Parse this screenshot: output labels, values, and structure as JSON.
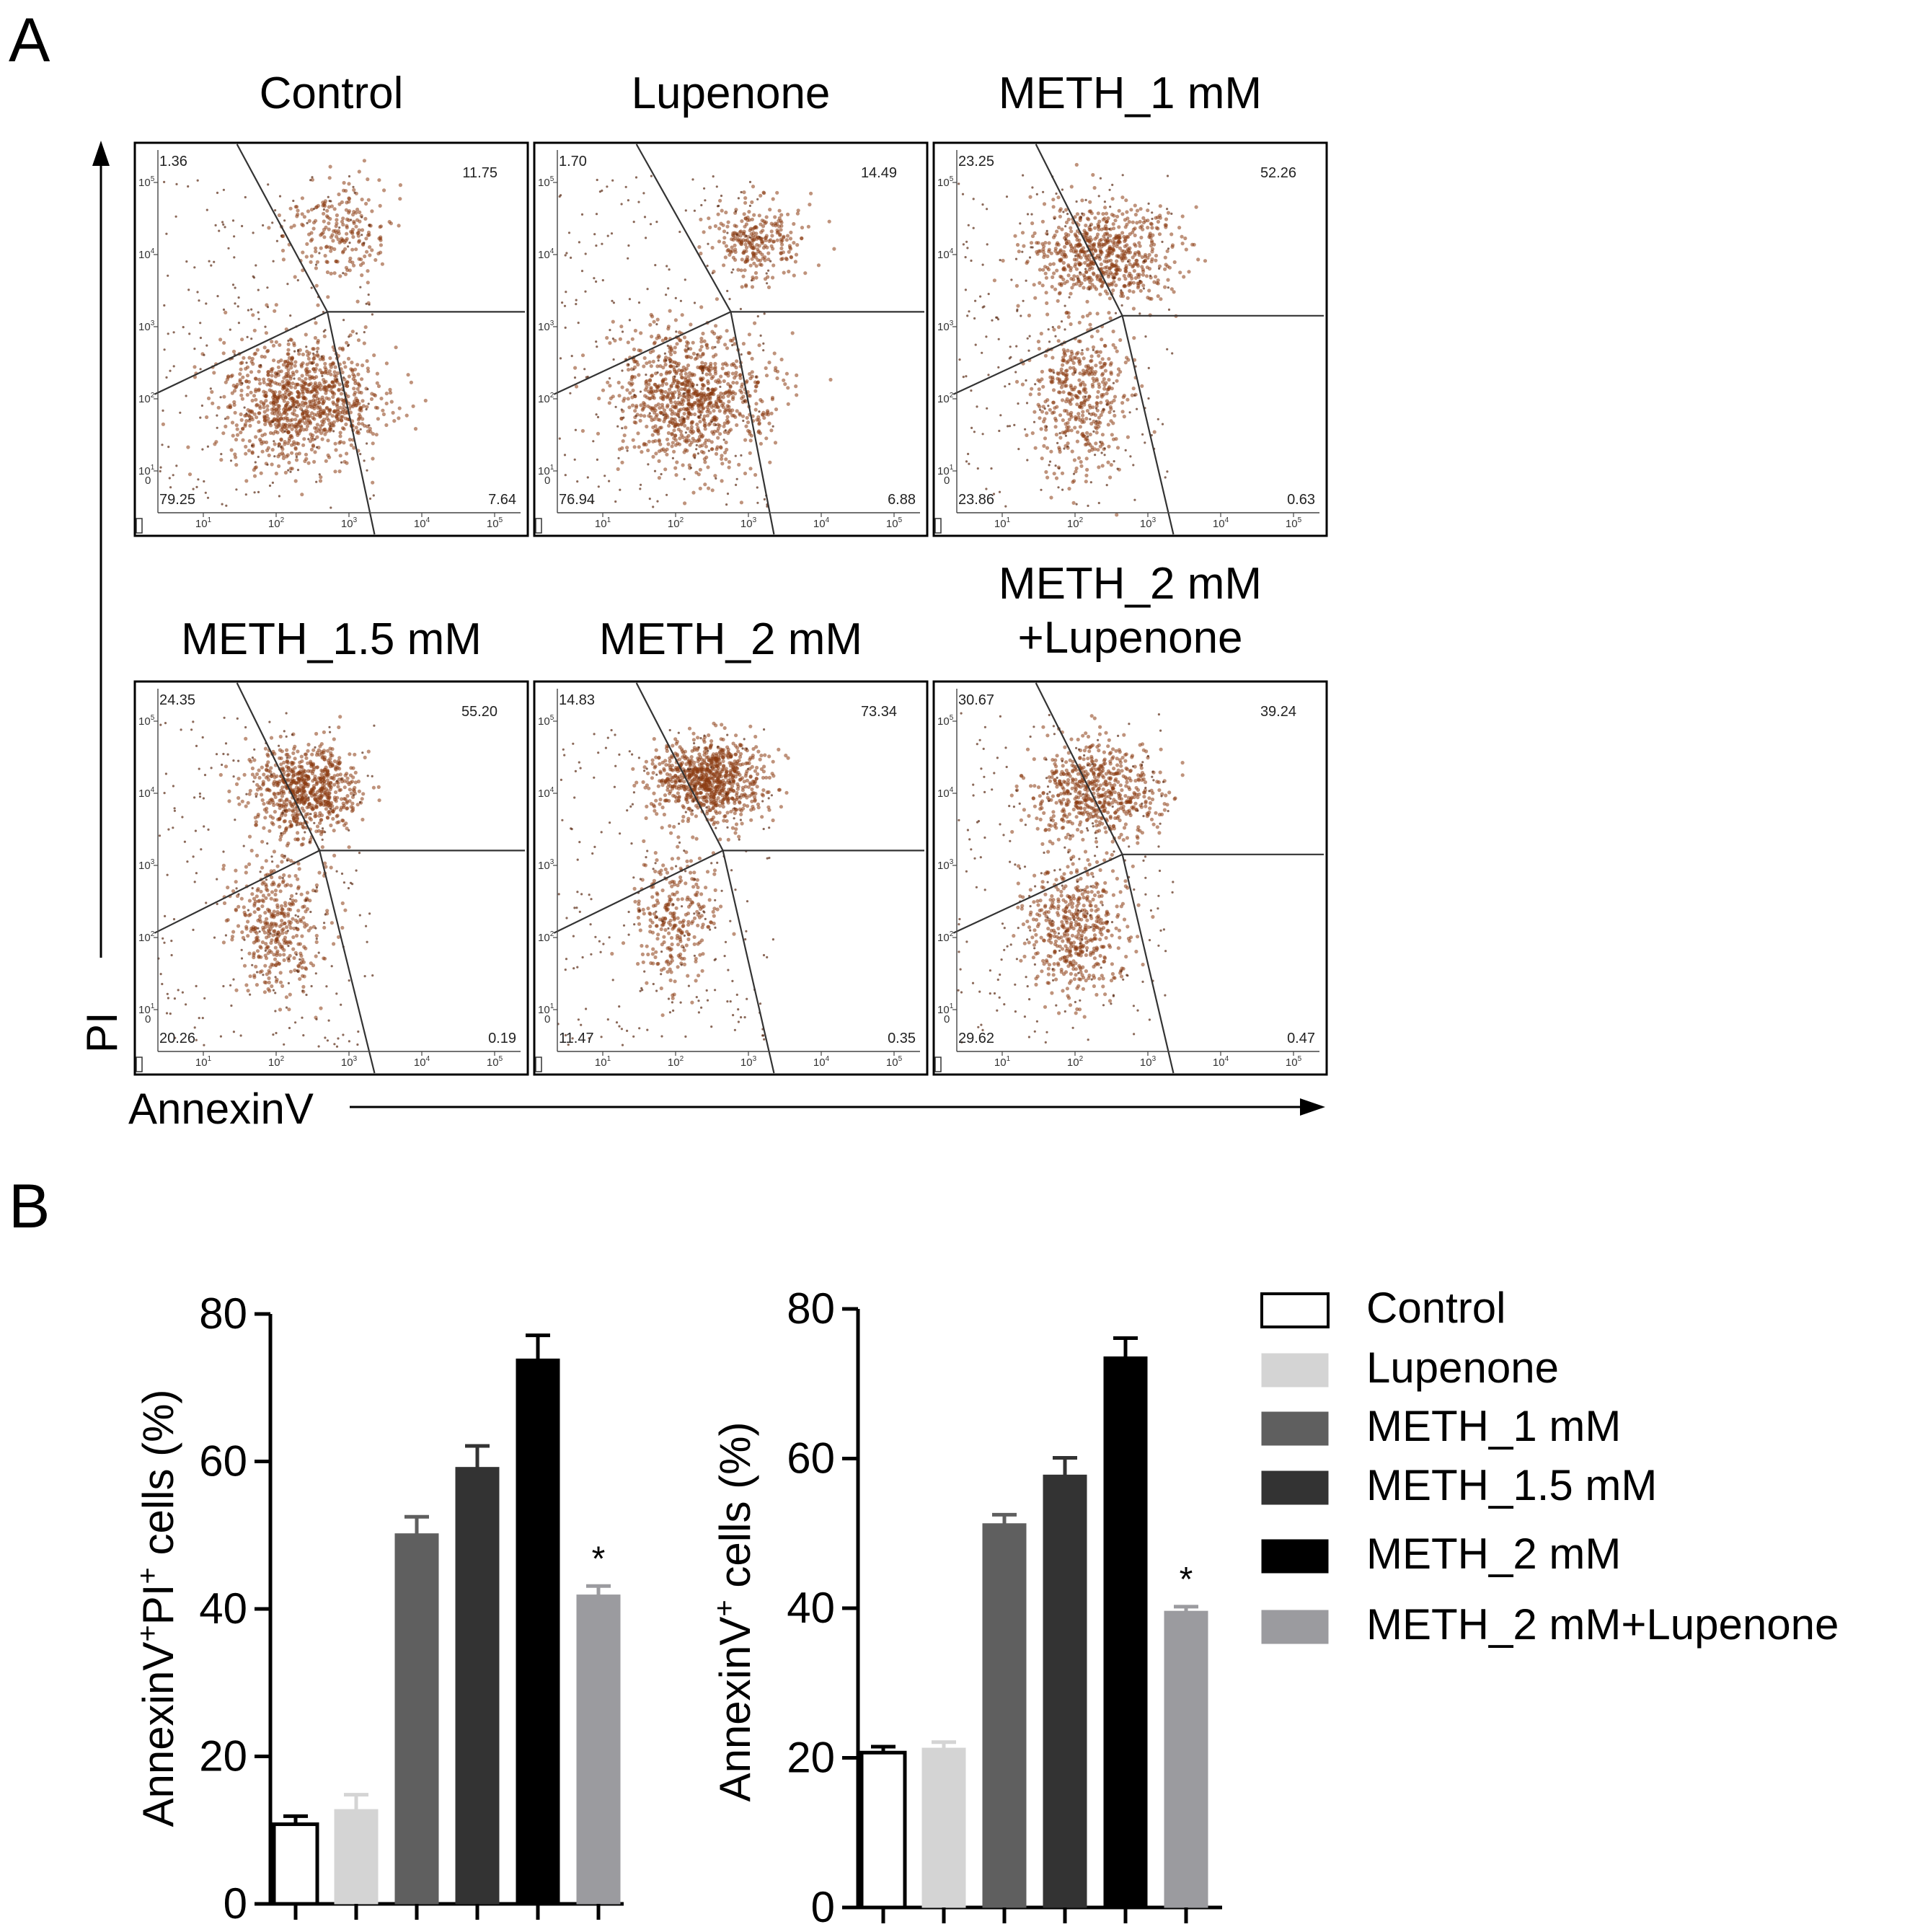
{
  "panel_labels": {
    "a": "A",
    "b": "B"
  },
  "flow": {
    "y_axis_label": "PI",
    "x_axis_label": "AnnexinV",
    "tick_exponents": [
      "1",
      "2",
      "3",
      "4",
      "5"
    ],
    "tick_base": "10",
    "tick_zero": "0",
    "plots": [
      {
        "title": [
          "Control"
        ],
        "q_ul": "1.36",
        "q_ur": "11.75",
        "q_ll": "79.25",
        "q_lr": "7.64"
      },
      {
        "title": [
          "Lupenone"
        ],
        "q_ul": "1.70",
        "q_ur": "14.49",
        "q_ll": "76.94",
        "q_lr": "6.88"
      },
      {
        "title": [
          "METH_1 mM"
        ],
        "q_ul": "23.25",
        "q_ur": "52.26",
        "q_ll": "23.86",
        "q_lr": "0.63"
      },
      {
        "title": [
          "METH_1.5 mM"
        ],
        "q_ul": "24.35",
        "q_ur": "55.20",
        "q_ll": "20.26",
        "q_lr": "0.19"
      },
      {
        "title": [
          "METH_2 mM"
        ],
        "q_ul": "14.83",
        "q_ur": "73.34",
        "q_ll": "11.47",
        "q_lr": "0.35"
      },
      {
        "title": [
          "METH_2 mM",
          "+Lupenone"
        ],
        "q_ul": "30.67",
        "q_ur": "39.24",
        "q_ll": "29.62",
        "q_lr": "0.47"
      }
    ],
    "point_color": "#8b3a10"
  },
  "chart_data": [
    {
      "type": "bar",
      "ylabel": "AnnexinV+PI+ cells (%)",
      "ylabel_parts": [
        "AnnexinV",
        "+",
        "PI",
        "+",
        " cells (%)"
      ],
      "ylim": [
        0,
        80
      ],
      "yticks": [
        0,
        20,
        40,
        60,
        80
      ],
      "categories": [
        "Control",
        "Lupenone",
        "METH_1 mM",
        "METH_1.5 mM",
        "METH_2 mM",
        "METH_2 mM+Lupenone"
      ],
      "values": [
        10.8,
        12.8,
        50.2,
        59.2,
        73.9,
        41.9
      ],
      "errors": [
        1.1,
        2.0,
        2.3,
        2.9,
        3.2,
        1.2
      ],
      "annotations": [
        "",
        "",
        "",
        "",
        "",
        "*"
      ]
    },
    {
      "type": "bar",
      "ylabel": "AnnexinV+ cells (%)",
      "ylabel_parts": [
        "AnnexinV",
        "+",
        " cells (%)"
      ],
      "ylim": [
        0,
        80
      ],
      "yticks": [
        0,
        20,
        40,
        60,
        80
      ],
      "categories": [
        "Control",
        "Lupenone",
        "METH_1 mM",
        "METH_1.5 mM",
        "METH_2 mM",
        "METH_2 mM+Lupenone"
      ],
      "values": [
        20.7,
        21.3,
        51.3,
        57.8,
        73.6,
        39.6
      ],
      "errors": [
        0.8,
        0.8,
        1.2,
        2.3,
        2.5,
        0.6
      ],
      "annotations": [
        "",
        "",
        "",
        "",
        "",
        "*"
      ]
    }
  ],
  "legend": {
    "position": "right",
    "entries": [
      {
        "label": "Control",
        "color": "#ffffff"
      },
      {
        "label": "Lupenone",
        "color": "#d4d4d4"
      },
      {
        "label": "METH_1 mM",
        "color": "#5f5f5f"
      },
      {
        "label": "METH_1.5 mM",
        "color": "#333333"
      },
      {
        "label": "METH_2 mM",
        "color": "#000000"
      },
      {
        "label": "METH_2 mM+Lupenone",
        "color": "#9b9b9f"
      }
    ]
  }
}
